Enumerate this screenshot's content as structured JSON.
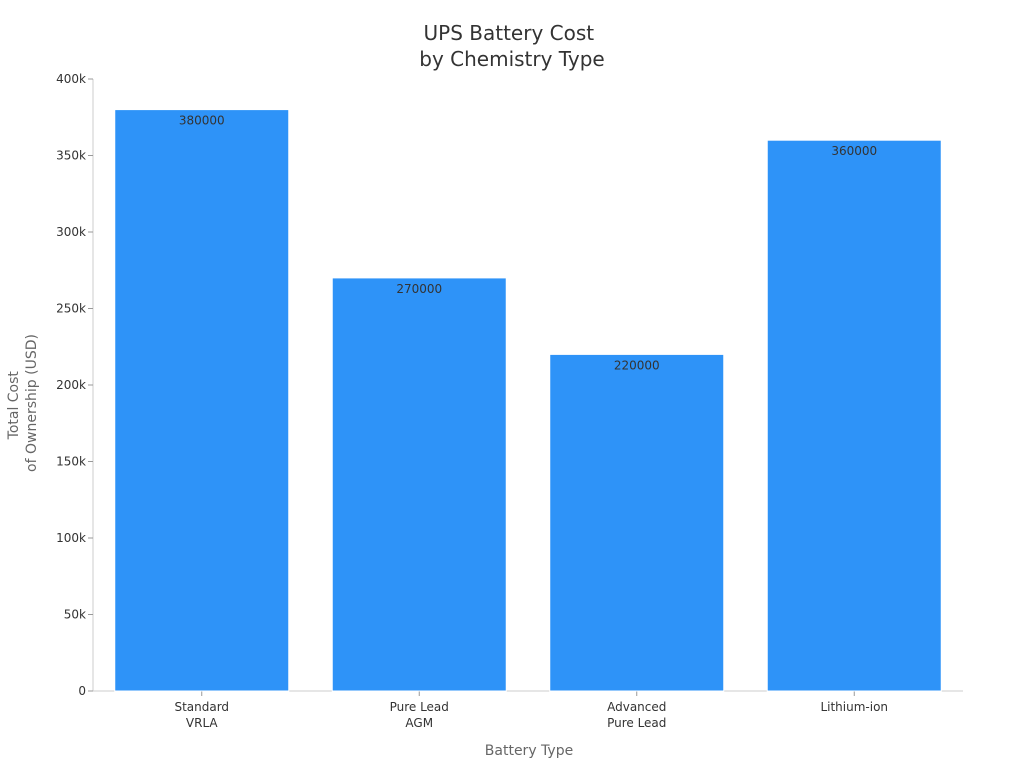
{
  "chart_data": {
    "type": "bar",
    "title": [
      "UPS Battery Cost",
      "by Chemistry Type"
    ],
    "xlabel": "Battery Type",
    "ylabel": [
      "Total Cost",
      "of Ownership (USD)"
    ],
    "categories": [
      [
        "Standard",
        "VRLA"
      ],
      [
        "Pure Lead",
        "AGM"
      ],
      [
        "Advanced",
        "Pure Lead"
      ],
      [
        "Lithium-ion"
      ]
    ],
    "series": [
      {
        "values": [
          380000,
          270000,
          220000,
          360000
        ],
        "color": "#2e93f8"
      }
    ],
    "data_labels": [
      "380000",
      "270000",
      "220000",
      "360000"
    ],
    "ylim": [
      0,
      400000
    ],
    "yticks": [
      0,
      50000,
      100000,
      150000,
      200000,
      250000,
      300000,
      350000,
      400000
    ],
    "ytick_labels": [
      "0",
      "50k",
      "100k",
      "150k",
      "200k",
      "250k",
      "300k",
      "350k",
      "400k"
    ],
    "grid": false,
    "legend": "none"
  }
}
